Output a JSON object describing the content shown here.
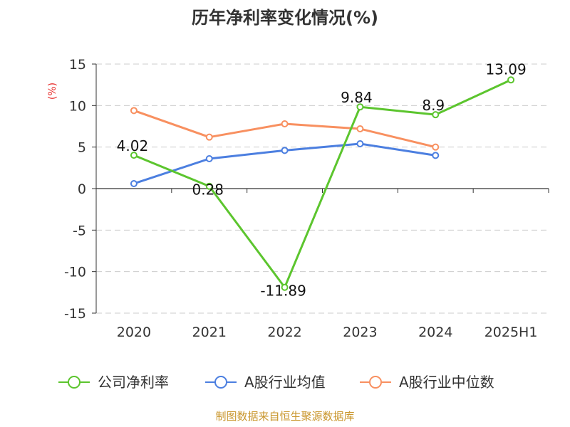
{
  "chart_data": {
    "type": "line",
    "title": "历年净利率变化情况(%)",
    "ylabel": "(%)",
    "xlabel": "",
    "categories": [
      "2020",
      "2021",
      "2022",
      "2023",
      "2024",
      "2025H1"
    ],
    "yticks": [
      "15",
      "10",
      "5",
      "0",
      "-5",
      "-10",
      "-15"
    ],
    "ylim": [
      -15,
      15
    ],
    "grid": true,
    "legend_position": "bottom",
    "series": [
      {
        "name": "公司净利率",
        "color": "#5cc52e",
        "values": [
          4.02,
          0.28,
          -11.89,
          9.84,
          8.9,
          13.09
        ],
        "labels": [
          "4.02",
          "0.28",
          "-11.89",
          "9.84",
          "8.9",
          "13.09"
        ]
      },
      {
        "name": "A股行业均值",
        "color": "#4c7fe0",
        "values": [
          0.6,
          3.6,
          4.6,
          5.4,
          4.0,
          null
        ]
      },
      {
        "name": "A股行业中位数",
        "color": "#f89060",
        "values": [
          9.4,
          6.2,
          7.8,
          7.2,
          5.0,
          null
        ]
      }
    ]
  },
  "source": "制图数据来自恒生聚源数据库"
}
